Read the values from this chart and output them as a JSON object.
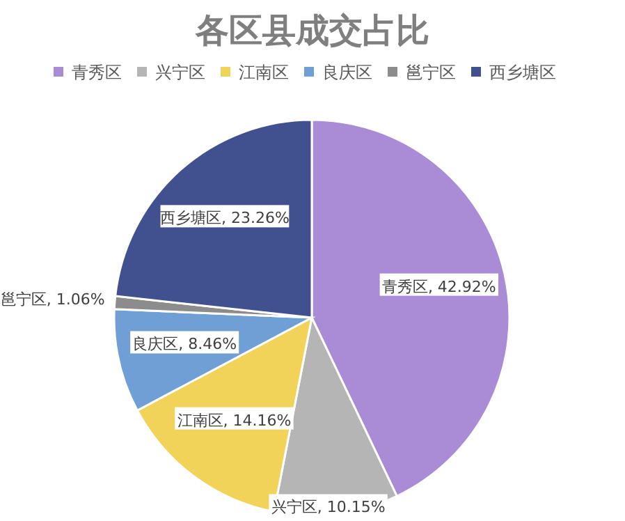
{
  "chart_data": {
    "type": "pie",
    "title": "各区县成交占比",
    "categories": [
      "青秀区",
      "兴宁区",
      "江南区",
      "良庆区",
      "邕宁区",
      "西乡塘区"
    ],
    "values": [
      42.92,
      10.15,
      14.16,
      8.46,
      1.06,
      23.26
    ],
    "value_labels": [
      "青秀区, 42.92%",
      "兴宁区, 10.15%",
      "江南区, 14.16%",
      "良庆区, 8.46%",
      "邕宁区, 1.06%",
      "西乡塘区, 23.26%"
    ],
    "colors": [
      "#a98bd6",
      "#b5b5b5",
      "#f2d35a",
      "#6f9fd4",
      "#8c8c8c",
      "#41508f"
    ],
    "legend": "top"
  }
}
